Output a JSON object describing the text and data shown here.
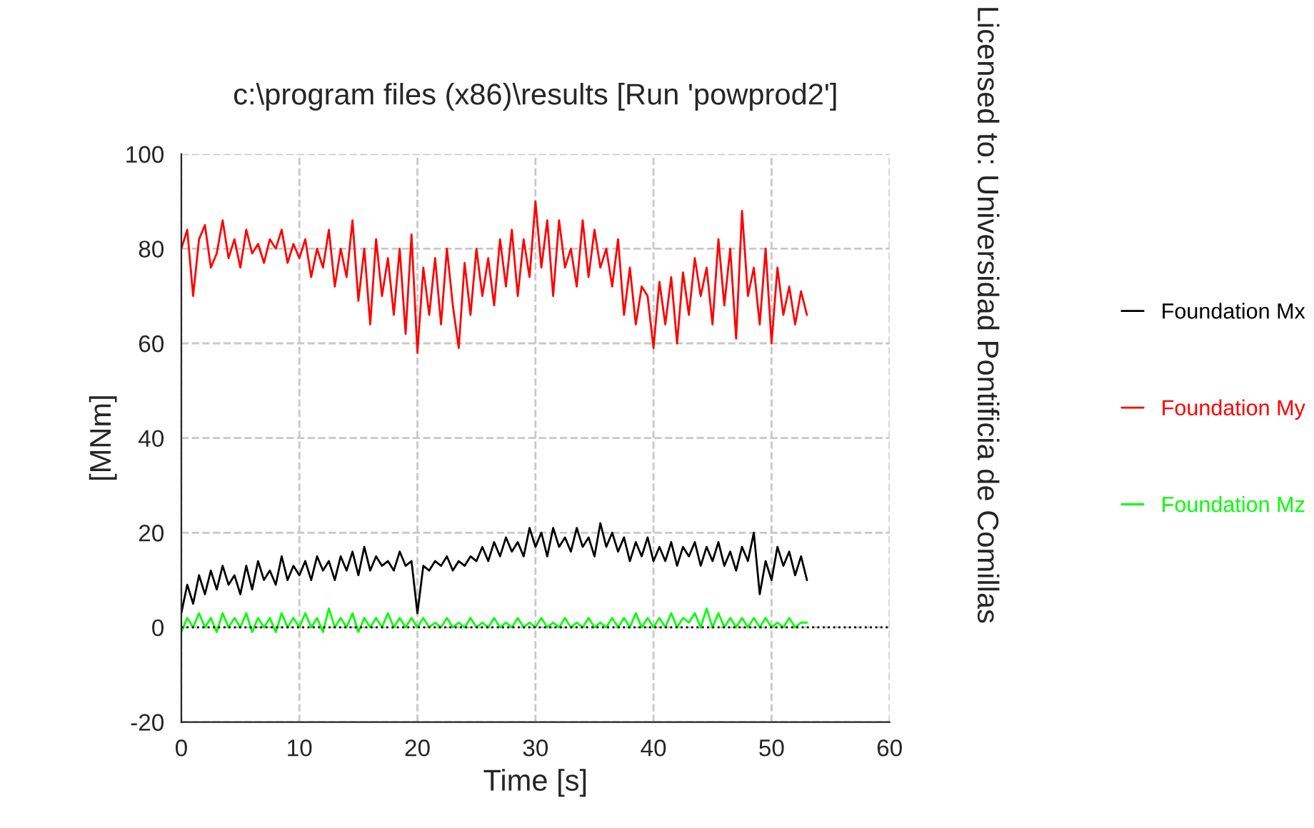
{
  "chart_data": {
    "type": "line",
    "title": "c:\\program files (x86)\\results [Run 'powprod2']",
    "xlabel": "Time [s]",
    "ylabel": "[MNm]",
    "annotations": [
      "Licensed to: Universidad Pontificia de Comillas"
    ],
    "x": [
      0,
      0.5,
      1,
      1.5,
      2,
      2.5,
      3,
      3.5,
      4,
      4.5,
      5,
      5.5,
      6,
      6.5,
      7,
      7.5,
      8,
      8.5,
      9,
      9.5,
      10,
      10.5,
      11,
      11.5,
      12,
      12.5,
      13,
      13.5,
      14,
      14.5,
      15,
      15.5,
      16,
      16.5,
      17,
      17.5,
      18,
      18.5,
      19,
      19.5,
      20,
      20.5,
      21,
      21.5,
      22,
      22.5,
      23,
      23.5,
      24,
      24.5,
      25,
      25.5,
      26,
      26.5,
      27,
      27.5,
      28,
      28.5,
      29,
      29.5,
      30,
      30.5,
      31,
      31.5,
      32,
      32.5,
      33,
      33.5,
      34,
      34.5,
      35,
      35.5,
      36,
      36.5,
      37,
      37.5,
      38,
      38.5,
      39,
      39.5,
      40,
      40.5,
      41,
      41.5,
      42,
      42.5,
      43,
      43.5,
      44,
      44.5,
      45,
      45.5,
      46,
      46.5,
      47,
      47.5,
      48,
      48.5,
      49,
      49.5,
      50,
      50.5,
      51,
      51.5,
      52,
      52.5,
      53
    ],
    "series": [
      {
        "name": "Foundation Mx",
        "color": "#000000",
        "values": [
          3,
          9,
          5,
          11,
          7,
          12,
          8,
          13,
          9,
          11,
          7,
          13,
          8,
          14,
          10,
          12,
          9,
          15,
          10,
          13,
          11,
          14,
          10,
          15,
          12,
          14,
          10,
          15,
          12,
          16,
          11,
          17,
          12,
          15,
          13,
          14,
          12,
          16,
          13,
          14,
          3,
          13,
          12,
          14,
          13,
          15,
          12,
          14,
          13,
          15,
          14,
          17,
          14,
          18,
          15,
          19,
          16,
          18,
          15,
          21,
          17,
          20,
          15,
          21,
          17,
          19,
          16,
          21,
          17,
          19,
          15,
          22,
          17,
          20,
          16,
          19,
          14,
          18,
          15,
          19,
          14,
          17,
          14,
          18,
          13,
          17,
          15,
          18,
          13,
          17,
          14,
          18,
          13,
          16,
          12,
          17,
          14,
          20,
          7,
          14,
          10,
          17,
          13,
          16,
          11,
          15,
          10
        ]
      },
      {
        "name": "Foundation My",
        "color": "#ff0000",
        "values": [
          80,
          84,
          70,
          82,
          85,
          76,
          79,
          86,
          78,
          82,
          76,
          84,
          79,
          81,
          77,
          82,
          80,
          84,
          77,
          81,
          78,
          82,
          74,
          80,
          76,
          84,
          72,
          80,
          74,
          86,
          69,
          80,
          64,
          82,
          70,
          78,
          66,
          80,
          62,
          83,
          58,
          76,
          66,
          78,
          64,
          80,
          68,
          59,
          77,
          66,
          80,
          70,
          78,
          68,
          82,
          72,
          84,
          70,
          82,
          74,
          90,
          76,
          86,
          70,
          86,
          76,
          80,
          72,
          86,
          74,
          84,
          76,
          80,
          72,
          82,
          66,
          76,
          64,
          72,
          70,
          59,
          73,
          64,
          74,
          60,
          75,
          66,
          78,
          70,
          76,
          64,
          82,
          68,
          80,
          61,
          88,
          70,
          76,
          64,
          80,
          60,
          76,
          66,
          72,
          64,
          71,
          66
        ]
      },
      {
        "name": "Foundation Mz",
        "color": "#00ff00",
        "values": [
          -1,
          2,
          0,
          3,
          0,
          2,
          -1,
          3,
          0,
          2,
          0,
          3,
          -1,
          2,
          0,
          2,
          -1,
          3,
          0,
          2,
          0,
          3,
          0,
          2,
          -1,
          4,
          0,
          2,
          0,
          3,
          -1,
          2,
          0,
          2,
          0,
          3,
          0,
          2,
          0,
          2,
          0,
          2,
          0,
          1,
          0,
          2,
          0,
          1,
          0,
          2,
          0,
          1,
          0,
          2,
          0,
          1,
          0,
          2,
          0,
          1,
          0,
          2,
          0,
          1,
          0,
          2,
          0,
          1,
          0,
          2,
          0,
          1,
          0,
          2,
          0,
          2,
          0,
          3,
          0,
          2,
          0,
          2,
          0,
          3,
          0,
          2,
          1,
          3,
          0,
          4,
          0,
          3,
          0,
          2,
          0,
          2,
          0,
          2,
          0,
          2,
          0,
          1,
          0,
          2,
          0,
          1,
          1
        ]
      }
    ],
    "xlim": [
      0,
      60
    ],
    "xticks": [
      0,
      10,
      20,
      30,
      40,
      50,
      60
    ],
    "ylim": [
      -20,
      100
    ],
    "yticks": [
      -20,
      0,
      20,
      40,
      60,
      80,
      100
    ],
    "ref_lines": [
      {
        "axis": "y",
        "value": 0,
        "color": "#000000",
        "line_style": "dotted"
      }
    ],
    "grid": true,
    "legend": "right",
    "line_style": "solid",
    "marker": "none"
  }
}
